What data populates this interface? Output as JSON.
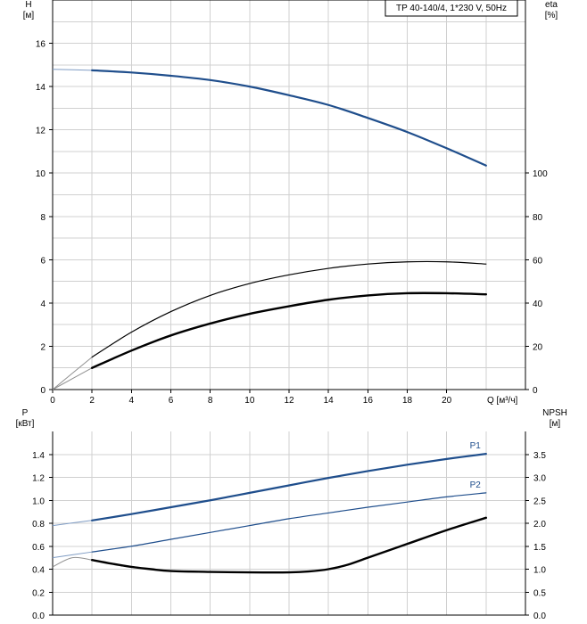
{
  "chart_data": [
    {
      "type": "line",
      "panel": "top",
      "legend_box": "TP 40-140/4, 1*230 V, 50Hz",
      "y_label_left": "H\n[м]",
      "y_label_right": "eta\n[%]",
      "x_label": "Q [м³/ч]",
      "xlim": [
        0,
        24
      ],
      "ylim_left": [
        0,
        18
      ],
      "ylim_right_visible": [
        0,
        100
      ],
      "x_ticks": [
        0,
        2,
        4,
        6,
        8,
        10,
        12,
        14,
        16,
        18,
        20
      ],
      "x_grid": [
        0,
        2,
        4,
        6,
        8,
        10,
        12,
        14,
        16,
        18,
        20,
        22
      ],
      "y_ticks_left": [
        0,
        2,
        4,
        6,
        8,
        10,
        12,
        14,
        16
      ],
      "y_ticks_right": [
        0,
        20,
        40,
        60,
        80,
        100
      ],
      "grid": true,
      "series": [
        {
          "color": "#1f4e8c",
          "width": 2.2,
          "axis": "left",
          "x": [
            0,
            2,
            4,
            6,
            8,
            10,
            12,
            14,
            16,
            18,
            20,
            22
          ],
          "y": [
            14.8,
            14.75,
            14.65,
            14.5,
            14.3,
            14.0,
            13.6,
            13.15,
            12.55,
            11.9,
            11.15,
            10.35
          ],
          "extrapolated_to": 2
        },
        {
          "color": "#000000",
          "width": 1.2,
          "axis": "right",
          "x": [
            0,
            2,
            4,
            6,
            8,
            10,
            12,
            14,
            16,
            18,
            20,
            22
          ],
          "y": [
            0,
            15,
            26.5,
            36,
            43.5,
            49,
            53,
            56,
            58,
            59,
            59,
            58
          ],
          "extrapolated_to": 2
        },
        {
          "color": "#000000",
          "width": 2.4,
          "axis": "right",
          "x": [
            0,
            2,
            4,
            6,
            8,
            10,
            12,
            14,
            16,
            18,
            20,
            22
          ],
          "y": [
            0,
            10,
            18,
            25,
            30.5,
            35,
            38.5,
            41.5,
            43.5,
            44.5,
            44.5,
            44
          ],
          "extrapolated_to": 2
        }
      ]
    },
    {
      "type": "line",
      "panel": "bottom",
      "y_label_left": "P\n[кВт]",
      "y_label_right": "NPSH\n[м]",
      "xlim": [
        0,
        24
      ],
      "ylim_left": [
        0,
        1.6
      ],
      "ylim_right": [
        0,
        4
      ],
      "x_grid": [
        0,
        2,
        4,
        6,
        8,
        10,
        12,
        14,
        16,
        18,
        20,
        22
      ],
      "y_ticks_left": [
        "0.0",
        "0.2",
        "0.4",
        "0.6",
        "0.8",
        "1.0",
        "1.2",
        "1.4"
      ],
      "y_ticks_right": [
        "0.0",
        "0.5",
        "1.0",
        "1.5",
        "2.0",
        "2.5",
        "3.0",
        "3.5"
      ],
      "grid": true,
      "series": [
        {
          "name": "P1",
          "color": "#1f4e8c",
          "width": 2.2,
          "axis": "left",
          "x": [
            0,
            2,
            4,
            6,
            8,
            10,
            12,
            14,
            16,
            18,
            20,
            22
          ],
          "y": [
            0.78,
            0.825,
            0.88,
            0.94,
            1.0,
            1.065,
            1.13,
            1.195,
            1.255,
            1.31,
            1.36,
            1.405
          ],
          "extrapolated_to": 2
        },
        {
          "name": "P2",
          "color": "#1f4e8c",
          "width": 1.2,
          "axis": "left",
          "x": [
            0,
            2,
            4,
            6,
            8,
            10,
            12,
            14,
            16,
            18,
            20,
            22
          ],
          "y": [
            0.5,
            0.55,
            0.6,
            0.66,
            0.72,
            0.78,
            0.84,
            0.89,
            0.94,
            0.985,
            1.03,
            1.065
          ],
          "extrapolated_to": 2
        },
        {
          "color": "#000000",
          "width": 2.4,
          "axis": "right",
          "x": [
            0,
            1,
            2,
            3,
            4,
            5,
            6,
            8,
            10,
            12,
            13,
            14,
            15,
            16,
            18,
            20,
            22
          ],
          "y": [
            1.05,
            1.25,
            1.2,
            1.12,
            1.05,
            1.0,
            0.96,
            0.94,
            0.93,
            0.93,
            0.95,
            1.0,
            1.1,
            1.25,
            1.55,
            1.85,
            2.12
          ],
          "extrapolated_to": 2
        }
      ]
    }
  ]
}
